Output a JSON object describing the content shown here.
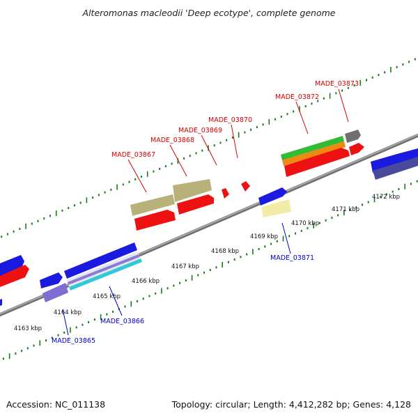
{
  "title": "Alteromonas macleodii 'Deep ecotype', complete genome",
  "footer": {
    "accession": "Accession: NC_011138",
    "stats": "Topology: circular; Length: 4,412,282 bp; Genes: 4,128"
  },
  "map": {
    "tick_labels": [
      "4163 kbp",
      "4164 kbp",
      "4165 kbp",
      "4166 kbp",
      "4167 kbp",
      "4168 kbp",
      "4169 kbp",
      "4170 kbp",
      "4171 kbp",
      "4172 kbp"
    ],
    "gene_labels_forward": [
      "MADE_03867",
      "MADE_03868",
      "MADE_03869",
      "MADE_03870",
      "MADE_03872",
      "MADE_03873"
    ],
    "gene_labels_reverse": [
      "MADE_03865",
      "MADE_03866",
      "MADE_03871"
    ],
    "colors": {
      "forward_label": "#d40000",
      "reverse_label": "#0000c8",
      "backbone": "#8a8a8a",
      "tick_mark": "#1a7a1a",
      "cds_red": "#ee1111",
      "cds_blue": "#1a1ae0",
      "olive": "#b8b27a",
      "navy": "#4a4a9a",
      "pale_yellow": "#f3eba8",
      "cyan": "#33c8d8",
      "lavender": "#7e6ed0",
      "green": "#33bb33",
      "orange": "#ee8a11",
      "gray": "#707070"
    }
  }
}
